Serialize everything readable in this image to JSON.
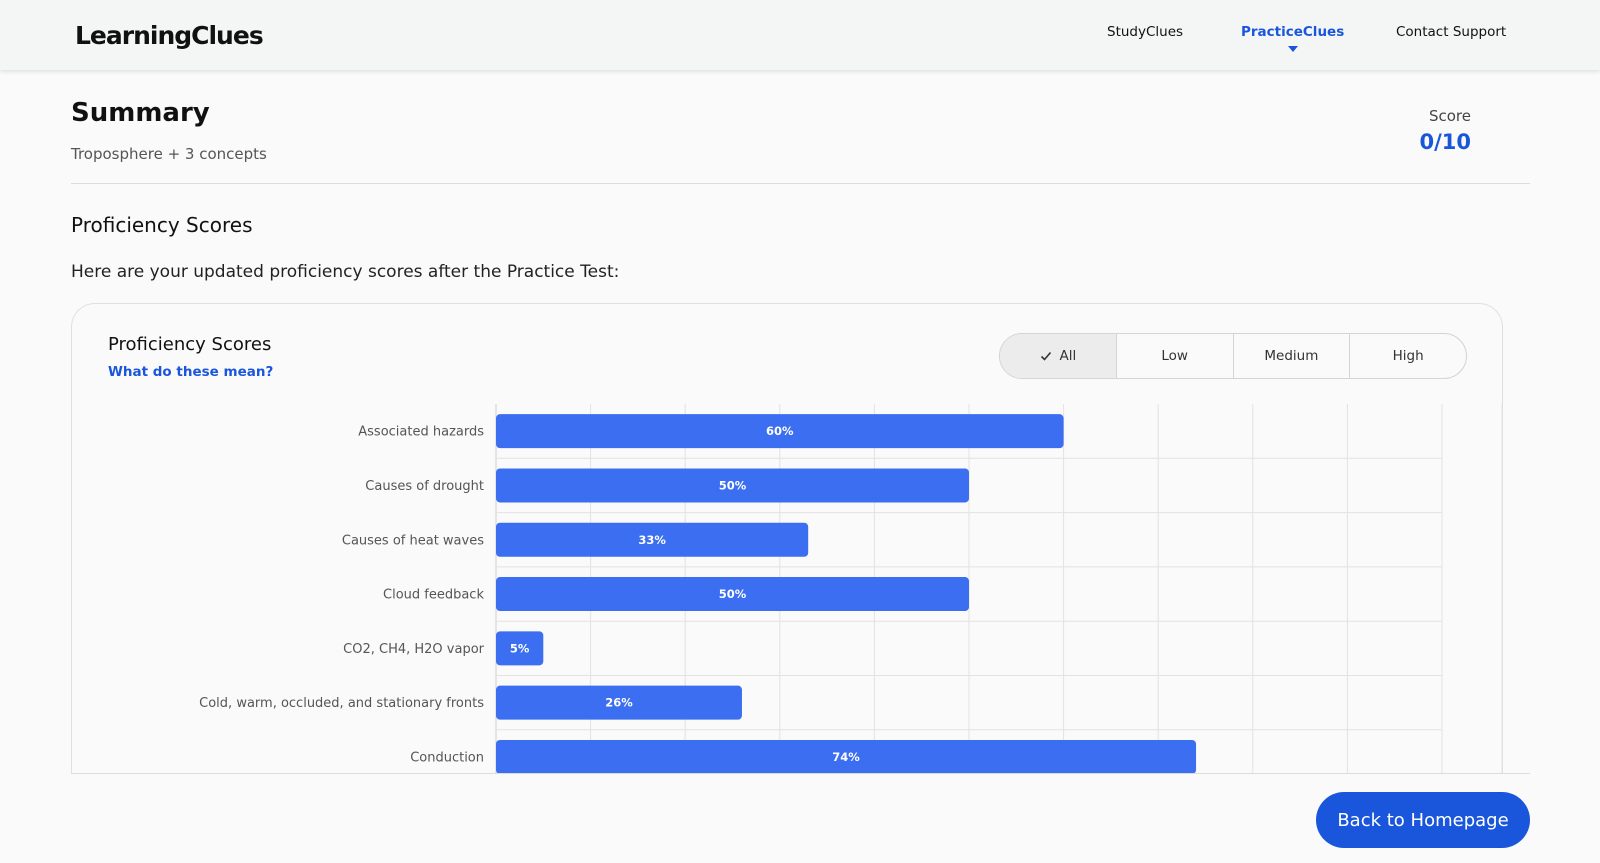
{
  "header": {
    "logo_text": "LearningClues",
    "nav": [
      {
        "label": "StudyClues"
      },
      {
        "label": "PracticeClues"
      },
      {
        "label": "Contact Support"
      }
    ]
  },
  "summary": {
    "title": "Summary",
    "subtitle": "Troposphere + 3 concepts",
    "score_label": "Score",
    "score_value": "0/10"
  },
  "proficiency": {
    "section_title": "Proficiency Scores",
    "intro": "Here are your updated proficiency scores after the Practice Test:",
    "card_title": "Proficiency Scores",
    "help_link": "What do these mean?",
    "filters": [
      {
        "label": "All",
        "selected": true
      },
      {
        "label": "Low",
        "selected": false
      },
      {
        "label": "Medium",
        "selected": false
      },
      {
        "label": "High",
        "selected": false
      }
    ]
  },
  "chart_data": {
    "type": "bar",
    "orientation": "horizontal",
    "categories": [
      "Associated hazards",
      "Causes of drought",
      "Causes of heat waves",
      "Cloud feedback",
      "CO2, CH4, H2O vapor",
      "Cold, warm, occluded, and stationary fronts",
      "Conduction"
    ],
    "values": [
      60,
      50,
      33,
      50,
      5,
      26,
      74
    ],
    "value_labels": [
      "60%",
      "50%",
      "33%",
      "50%",
      "5%",
      "26%",
      "74%"
    ],
    "xlim": [
      0,
      100
    ],
    "grid": true,
    "bar_color": "#3b6ef0"
  },
  "footer": {
    "button_label": "Back to Homepage"
  },
  "colors": {
    "accent": "#1a56db",
    "bar": "#3b6ef0"
  }
}
